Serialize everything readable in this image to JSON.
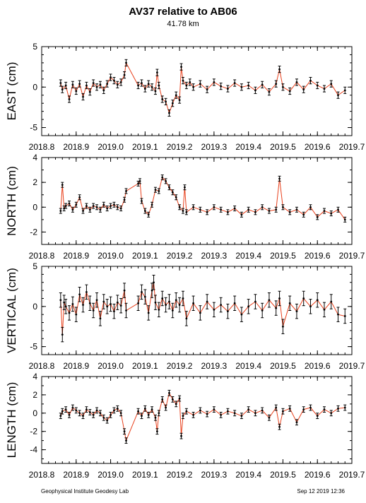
{
  "header": {
    "title": "AV37 relative to AB06",
    "subtitle": "41.78 km"
  },
  "footer": {
    "left": "Geophysical Institute Geodesy Lab",
    "right": "Sep 12 2019 12:36"
  },
  "colors": {
    "line": "#e8401c",
    "points": "#000000",
    "frame": "#000000"
  },
  "chart_data": [
    {
      "type": "line",
      "ylabel": "EAST (cm)",
      "xlim": [
        2018.8,
        2019.7
      ],
      "ylim": [
        -6,
        5
      ],
      "yticks": [
        -5,
        0,
        5
      ],
      "xticks": [
        "2018.8",
        "2018.9",
        "2019.0",
        "2019.1",
        "2019.2",
        "2019.3",
        "2019.4",
        "2019.5",
        "2019.6",
        "2019.7"
      ],
      "error_cm": 0.4,
      "series": [
        {
          "x": [
            2018.855,
            2018.86,
            2018.87,
            2018.88,
            2018.89,
            2018.9,
            2018.91,
            2018.92,
            2018.93,
            2018.94,
            2018.95,
            2018.96,
            2018.97,
            2018.98,
            2018.99,
            2019.0,
            2019.01,
            2019.02,
            2019.03,
            2019.04,
            2019.045,
            2019.08,
            2019.09,
            2019.1,
            2019.11,
            2019.12,
            2019.13,
            2019.135,
            2019.14,
            2019.15,
            2019.16,
            2019.17,
            2019.18,
            2019.19,
            2019.2,
            2019.205,
            2019.21,
            2019.22,
            2019.23,
            2019.24,
            2019.26,
            2019.28,
            2019.3,
            2019.32,
            2019.34,
            2019.36,
            2019.38,
            2019.4,
            2019.42,
            2019.44,
            2019.46,
            2019.48,
            2019.49,
            2019.5,
            2019.52,
            2019.54,
            2019.56,
            2019.58,
            2019.6,
            2019.62,
            2019.64,
            2019.66,
            2019.68
          ],
          "y": [
            0.5,
            -0.3,
            0.2,
            -1.5,
            0.3,
            -0.5,
            0.4,
            -1.2,
            0.2,
            -0.6,
            0.5,
            0.0,
            0.3,
            -0.4,
            0.4,
            1.2,
            0.8,
            0.3,
            0.6,
            1.5,
            3.0,
            0.2,
            0.5,
            -0.2,
            0.4,
            0.0,
            -0.5,
            1.8,
            0.2,
            -1.5,
            -1.8,
            -3.2,
            -2.0,
            -1.0,
            -1.6,
            2.5,
            0.8,
            0.2,
            0.6,
            0.0,
            0.4,
            -0.3,
            0.6,
            0.1,
            -0.2,
            0.5,
            0.0,
            0.2,
            -0.4,
            0.3,
            -0.6,
            0.4,
            2.2,
            0.0,
            -0.5,
            0.6,
            -0.3,
            0.8,
            0.2,
            -0.2,
            0.4,
            -1.0,
            -0.4
          ]
        }
      ]
    },
    {
      "type": "line",
      "ylabel": "NORTH (cm)",
      "xlim": [
        2018.8,
        2019.7
      ],
      "ylim": [
        -3,
        4
      ],
      "yticks": [
        -2,
        0,
        2,
        4
      ],
      "xticks": [
        "2018.8",
        "2018.9",
        "2019.0",
        "2019.1",
        "2019.2",
        "2019.3",
        "2019.4",
        "2019.5",
        "2019.6",
        "2019.7"
      ],
      "error_cm": 0.2,
      "series": [
        {
          "x": [
            2018.855,
            2018.86,
            2018.865,
            2018.87,
            2018.88,
            2018.89,
            2018.9,
            2018.91,
            2018.92,
            2018.93,
            2018.94,
            2018.95,
            2018.96,
            2018.97,
            2018.98,
            2018.99,
            2019.0,
            2019.01,
            2019.02,
            2019.03,
            2019.04,
            2019.045,
            2019.08,
            2019.085,
            2019.09,
            2019.1,
            2019.11,
            2019.12,
            2019.13,
            2019.14,
            2019.15,
            2019.16,
            2019.17,
            2019.18,
            2019.19,
            2019.2,
            2019.21,
            2019.215,
            2019.22,
            2019.24,
            2019.26,
            2019.28,
            2019.3,
            2019.32,
            2019.34,
            2019.36,
            2019.38,
            2019.4,
            2019.42,
            2019.44,
            2019.46,
            2019.48,
            2019.49,
            2019.5,
            2019.52,
            2019.54,
            2019.56,
            2019.58,
            2019.6,
            2019.62,
            2019.64,
            2019.66,
            2019.68
          ],
          "y": [
            -0.3,
            1.8,
            -0.1,
            0.1,
            0.3,
            -0.2,
            0.2,
            0.8,
            -0.3,
            0.1,
            -0.2,
            0.1,
            0.0,
            -0.2,
            0.2,
            -0.1,
            0.1,
            0.2,
            0.0,
            -0.1,
            0.6,
            1.3,
            1.9,
            2.1,
            0.5,
            -0.3,
            -0.6,
            0.2,
            1.4,
            1.3,
            2.4,
            2.1,
            1.6,
            1.2,
            0.8,
            0.0,
            -0.3,
            1.6,
            -0.4,
            0.0,
            -0.2,
            -0.4,
            0.0,
            -0.2,
            -0.4,
            -0.1,
            -0.6,
            -0.2,
            -0.4,
            0.0,
            -0.3,
            -0.2,
            2.3,
            0.0,
            -0.4,
            -0.2,
            -0.6,
            0.0,
            -0.8,
            -0.3,
            -0.5,
            -0.2,
            -1.0
          ]
        }
      ]
    },
    {
      "type": "line",
      "ylabel": "VERTICAL (cm)",
      "xlim": [
        2018.8,
        2019.7
      ],
      "ylim": [
        -6,
        5
      ],
      "yticks": [
        -5,
        0,
        5
      ],
      "xticks": [
        "2018.8",
        "2018.9",
        "2019.0",
        "2019.1",
        "2019.2",
        "2019.3",
        "2019.4",
        "2019.5",
        "2019.6",
        "2019.7"
      ],
      "error_cm": 0.9,
      "series": [
        {
          "x": [
            2018.855,
            2018.86,
            2018.865,
            2018.87,
            2018.88,
            2018.89,
            2018.9,
            2018.91,
            2018.92,
            2018.93,
            2018.94,
            2018.95,
            2018.96,
            2018.97,
            2018.98,
            2018.99,
            2019.0,
            2019.01,
            2019.02,
            2019.03,
            2019.04,
            2019.045,
            2019.08,
            2019.09,
            2019.1,
            2019.11,
            2019.12,
            2019.125,
            2019.13,
            2019.14,
            2019.15,
            2019.16,
            2019.17,
            2019.18,
            2019.19,
            2019.2,
            2019.21,
            2019.22,
            2019.24,
            2019.26,
            2019.28,
            2019.3,
            2019.32,
            2019.34,
            2019.36,
            2019.38,
            2019.4,
            2019.42,
            2019.44,
            2019.46,
            2019.48,
            2019.49,
            2019.5,
            2019.52,
            2019.54,
            2019.56,
            2019.58,
            2019.6,
            2019.62,
            2019.64,
            2019.66,
            2019.68
          ],
          "y": [
            0.8,
            -3.5,
            0.5,
            0.0,
            -0.8,
            0.3,
            -1.0,
            1.5,
            0.2,
            1.8,
            0.4,
            -0.5,
            0.8,
            -1.5,
            0.6,
            0.0,
            0.3,
            -0.6,
            0.5,
            0.1,
            2.0,
            -0.5,
            0.4,
            1.8,
            1.2,
            -0.8,
            2.0,
            3.0,
            0.5,
            -0.4,
            1.0,
            0.2,
            0.6,
            -0.5,
            0.8,
            0.2,
            1.0,
            -1.5,
            0.4,
            -0.8,
            0.6,
            -0.4,
            0.2,
            -0.6,
            0.4,
            -1.0,
            0.0,
            0.6,
            -0.5,
            0.8,
            -0.2,
            1.0,
            -2.5,
            0.4,
            -0.6,
            1.0,
            0.0,
            0.8,
            -0.4,
            0.6,
            -1.0,
            -1.2
          ]
        }
      ]
    },
    {
      "type": "line",
      "ylabel": "LENGTH (cm)",
      "xlim": [
        2018.8,
        2019.7
      ],
      "ylim": [
        -5.5,
        4
      ],
      "yticks": [
        -4,
        -2,
        0,
        2,
        4
      ],
      "xticks": [
        "2018.8",
        "2018.9",
        "2019.0",
        "2019.1",
        "2019.2",
        "2019.3",
        "2019.4",
        "2019.5",
        "2019.6",
        "2019.7"
      ],
      "error_cm": 0.3,
      "series": [
        {
          "x": [
            2018.855,
            2018.86,
            2018.87,
            2018.88,
            2018.89,
            2018.9,
            2018.91,
            2018.92,
            2018.93,
            2018.94,
            2018.95,
            2018.96,
            2018.97,
            2018.98,
            2018.99,
            2019.0,
            2019.01,
            2019.02,
            2019.03,
            2019.04,
            2019.045,
            2019.08,
            2019.09,
            2019.1,
            2019.11,
            2019.12,
            2019.13,
            2019.135,
            2019.14,
            2019.15,
            2019.16,
            2019.17,
            2019.18,
            2019.19,
            2019.2,
            2019.205,
            2019.21,
            2019.22,
            2019.24,
            2019.26,
            2019.28,
            2019.3,
            2019.32,
            2019.34,
            2019.36,
            2019.38,
            2019.4,
            2019.42,
            2019.44,
            2019.46,
            2019.48,
            2019.49,
            2019.5,
            2019.52,
            2019.54,
            2019.56,
            2019.58,
            2019.6,
            2019.62,
            2019.64,
            2019.66,
            2019.68
          ],
          "y": [
            -0.3,
            0.2,
            0.4,
            -0.2,
            0.6,
            0.3,
            0.0,
            -0.3,
            0.4,
            0.1,
            -0.2,
            0.3,
            0.0,
            -0.5,
            -0.8,
            -0.2,
            0.3,
            0.5,
            0.0,
            -2.0,
            -3.0,
            0.2,
            -0.3,
            0.5,
            -0.2,
            0.4,
            -0.5,
            -2.0,
            0.0,
            1.5,
            0.6,
            2.2,
            1.5,
            1.0,
            1.6,
            -2.5,
            -0.3,
            0.2,
            -0.2,
            0.3,
            -0.1,
            0.4,
            -0.2,
            0.2,
            0.0,
            -0.3,
            0.4,
            0.0,
            0.3,
            -0.5,
            0.6,
            -1.5,
            0.2,
            0.5,
            -1.0,
            0.4,
            0.6,
            -0.3,
            0.4,
            0.0,
            0.5,
            0.6
          ]
        }
      ]
    }
  ]
}
